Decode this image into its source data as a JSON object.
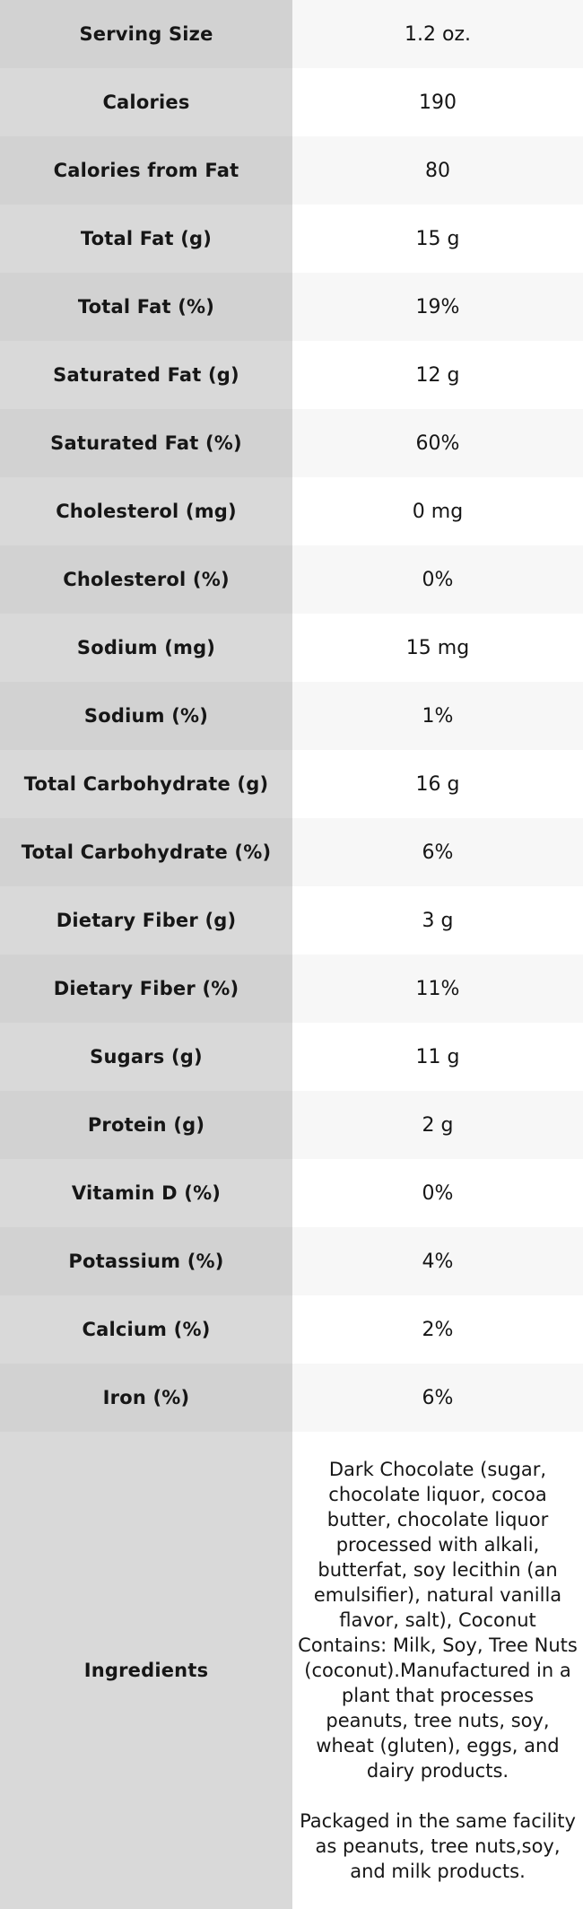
{
  "colors": {
    "label_cell_odd": "#d2d2d2",
    "label_cell_even": "#d9d9d9",
    "value_cell_odd": "#f7f7f7",
    "value_cell_even": "#ffffff",
    "text": "#161616"
  },
  "table": {
    "rows": [
      {
        "label": "Serving Size",
        "value": "1.2 oz."
      },
      {
        "label": "Calories",
        "value": "190"
      },
      {
        "label": "Calories from Fat",
        "value": "80"
      },
      {
        "label": "Total Fat (g)",
        "value": "15 g"
      },
      {
        "label": "Total Fat (%)",
        "value": "19%"
      },
      {
        "label": "Saturated Fat (g)",
        "value": "12 g"
      },
      {
        "label": "Saturated Fat (%)",
        "value": "60%"
      },
      {
        "label": "Cholesterol (mg)",
        "value": "0 mg"
      },
      {
        "label": "Cholesterol (%)",
        "value": "0%"
      },
      {
        "label": "Sodium (mg)",
        "value": "15 mg"
      },
      {
        "label": "Sodium (%)",
        "value": "1%"
      },
      {
        "label": "Total Carbohydrate (g)",
        "value": "16 g"
      },
      {
        "label": "Total Carbohydrate (%)",
        "value": "6%"
      },
      {
        "label": "Dietary Fiber (g)",
        "value": "3 g"
      },
      {
        "label": "Dietary Fiber (%)",
        "value": "11%"
      },
      {
        "label": "Sugars (g)",
        "value": "11 g"
      },
      {
        "label": "Protein (g)",
        "value": "2 g"
      },
      {
        "label": "Vitamin D (%)",
        "value": "0%"
      },
      {
        "label": "Potassium (%)",
        "value": "4%"
      },
      {
        "label": "Calcium (%)",
        "value": "2%"
      },
      {
        "label": "Iron (%)",
        "value": "6%"
      }
    ],
    "ingredients": {
      "label": "Ingredients",
      "value": "Dark Chocolate (sugar, chocolate liquor, cocoa butter, chocolate liquor processed with alkali, butterfat, soy lecithin (an emulsifier), natural vanilla flavor, salt), Coconut Contains: Milk, Soy, Tree Nuts (coconut).Manufactured in a plant that processes peanuts, tree nuts, soy, wheat (gluten), eggs, and dairy products.\n\nPackaged in the same facility as peanuts, tree nuts,soy, and milk products."
    }
  }
}
